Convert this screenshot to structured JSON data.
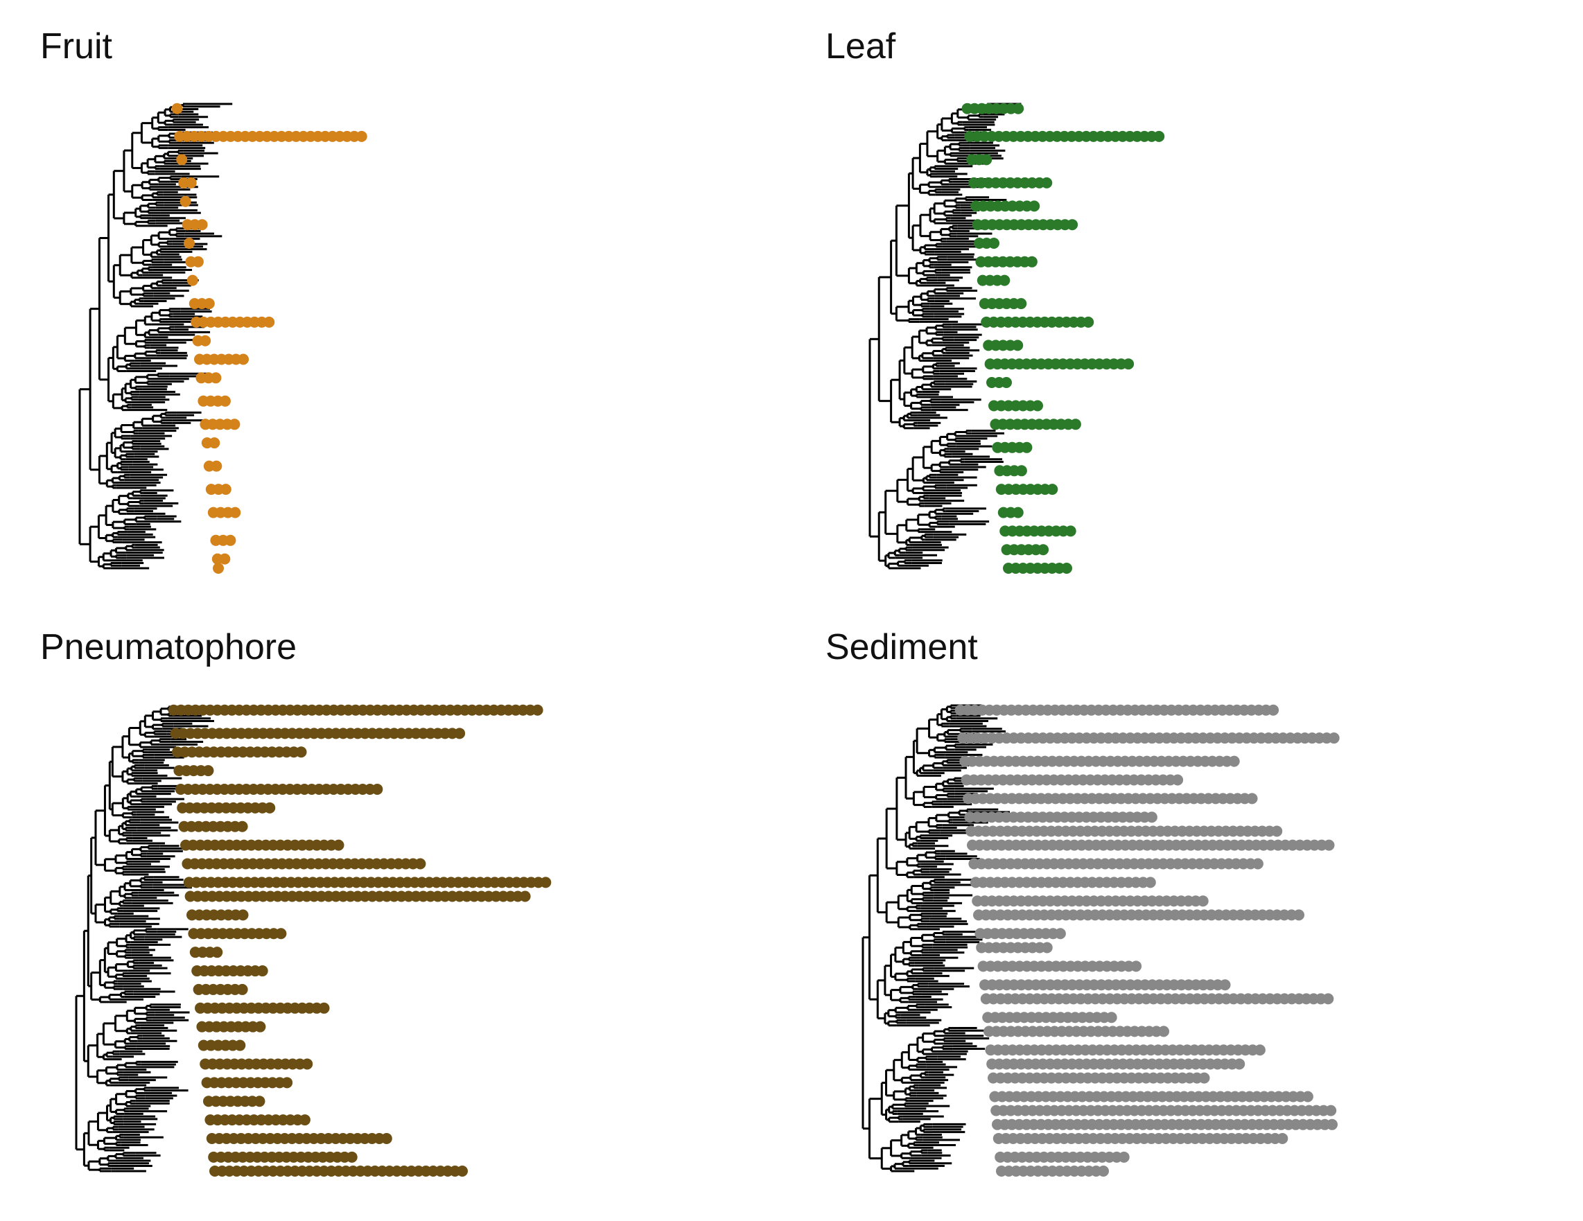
{
  "figure": {
    "panels": [
      {
        "key": "fruit",
        "title": "Fruit",
        "color": "#d4821a"
      },
      {
        "key": "leaf",
        "title": "Leaf",
        "color": "#2a7a2a"
      },
      {
        "key": "pneumatophore",
        "title": "Pneumatophore",
        "color": "#6a4e14"
      },
      {
        "key": "sediment",
        "title": "Sediment",
        "color": "#888888"
      }
    ]
  },
  "chart_data": [
    {
      "type": "scatter",
      "subtype": "phylogenetic-tree-with-tip-abundance-dots",
      "title": "Fruit",
      "tree_color": "#000000",
      "dot_color": "#d4821a",
      "tip_rows_relative_depth_0_to_1": [
        [
          0.0,
          1
        ],
        [
          0.02,
          2
        ],
        [
          0.06,
          3
        ],
        [
          0.12,
          4
        ],
        [
          0.17,
          3
        ],
        [
          0.22,
          2
        ],
        [
          0.27,
          2
        ],
        [
          0.31,
          5
        ],
        [
          0.36,
          4
        ],
        [
          0.41,
          3
        ],
        [
          0.45,
          7
        ],
        [
          0.49,
          2
        ],
        [
          0.53,
          11
        ],
        [
          0.57,
          3
        ],
        [
          0.62,
          1
        ],
        [
          0.66,
          2
        ],
        [
          0.7,
          1
        ],
        [
          0.74,
          3
        ],
        [
          0.79,
          1
        ],
        [
          0.83,
          2
        ],
        [
          0.88,
          1
        ],
        [
          0.93,
          26
        ],
        [
          0.99,
          1
        ]
      ]
    },
    {
      "type": "scatter",
      "subtype": "phylogenetic-tree-with-tip-abundance-dots",
      "title": "Leaf",
      "tree_color": "#000000",
      "dot_color": "#2a7a2a",
      "tip_rows_relative_depth_0_to_1": [
        [
          0.0,
          9
        ],
        [
          0.04,
          6
        ],
        [
          0.08,
          10
        ],
        [
          0.12,
          3
        ],
        [
          0.17,
          8
        ],
        [
          0.21,
          4
        ],
        [
          0.26,
          5
        ],
        [
          0.31,
          12
        ],
        [
          0.35,
          7
        ],
        [
          0.4,
          3
        ],
        [
          0.44,
          20
        ],
        [
          0.48,
          5
        ],
        [
          0.53,
          15
        ],
        [
          0.57,
          6
        ],
        [
          0.62,
          4
        ],
        [
          0.66,
          8
        ],
        [
          0.7,
          3
        ],
        [
          0.74,
          14
        ],
        [
          0.78,
          9
        ],
        [
          0.83,
          11
        ],
        [
          0.88,
          3
        ],
        [
          0.93,
          27
        ],
        [
          0.99,
          8
        ]
      ]
    },
    {
      "type": "scatter",
      "subtype": "phylogenetic-tree-with-tip-abundance-dots",
      "title": "Pneumatophore",
      "tree_color": "#000000",
      "dot_color": "#6a4e14",
      "tip_rows_relative_depth_0_to_1": [
        [
          0.0,
          35
        ],
        [
          0.03,
          20
        ],
        [
          0.07,
          25
        ],
        [
          0.11,
          14
        ],
        [
          0.15,
          8
        ],
        [
          0.19,
          12
        ],
        [
          0.23,
          15
        ],
        [
          0.27,
          6
        ],
        [
          0.31,
          9
        ],
        [
          0.35,
          18
        ],
        [
          0.39,
          7
        ],
        [
          0.43,
          10
        ],
        [
          0.47,
          4
        ],
        [
          0.51,
          13
        ],
        [
          0.55,
          8
        ],
        [
          0.59,
          47
        ],
        [
          0.62,
          60
        ],
        [
          0.66,
          33
        ],
        [
          0.7,
          22
        ],
        [
          0.74,
          9
        ],
        [
          0.78,
          13
        ],
        [
          0.82,
          28
        ],
        [
          0.86,
          5
        ],
        [
          0.9,
          18
        ],
        [
          0.94,
          40
        ],
        [
          0.99,
          51
        ]
      ]
    },
    {
      "type": "scatter",
      "subtype": "phylogenetic-tree-with-tip-abundance-dots",
      "title": "Sediment",
      "tree_color": "#000000",
      "dot_color": "#888888",
      "tip_rows_relative_depth_0_to_1": [
        [
          0.0,
          15
        ],
        [
          0.03,
          18
        ],
        [
          0.07,
          40
        ],
        [
          0.1,
          58
        ],
        [
          0.13,
          52
        ],
        [
          0.16,
          44
        ],
        [
          0.2,
          30
        ],
        [
          0.23,
          35
        ],
        [
          0.26,
          38
        ],
        [
          0.3,
          25
        ],
        [
          0.33,
          18
        ],
        [
          0.37,
          57
        ],
        [
          0.4,
          34
        ],
        [
          0.44,
          22
        ],
        [
          0.48,
          10
        ],
        [
          0.51,
          12
        ],
        [
          0.55,
          45
        ],
        [
          0.58,
          32
        ],
        [
          0.62,
          25
        ],
        [
          0.66,
          40
        ],
        [
          0.7,
          57
        ],
        [
          0.73,
          43
        ],
        [
          0.76,
          26
        ],
        [
          0.8,
          40
        ],
        [
          0.84,
          30
        ],
        [
          0.88,
          38
        ],
        [
          0.93,
          54
        ],
        [
          0.99,
          44
        ]
      ]
    }
  ]
}
